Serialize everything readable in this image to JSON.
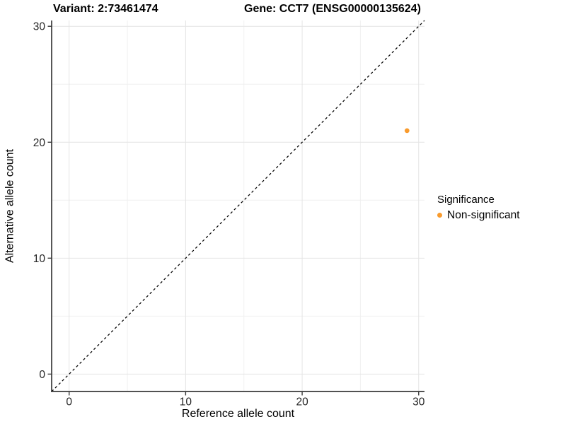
{
  "header": {
    "variant_title": "Variant: 2:73461474",
    "gene_title": "Gene: CCT7 (ENSG00000135624)"
  },
  "axes": {
    "x_label": "Reference allele count",
    "y_label": "Alternative allele count"
  },
  "legend": {
    "title": "Significance",
    "items": [
      {
        "label": "Non-significant",
        "color": "#F99B2D"
      }
    ]
  },
  "colors": {
    "point_orange": "#F99B2D",
    "axis_line": "#3a3a3a",
    "tick_label": "#262626",
    "grid_major": "#e4e4e4",
    "grid_minor": "#f0f0f0",
    "identity_line": "#000000"
  },
  "chart_data": {
    "type": "scatter",
    "title": "Variant: 2:73461474   Gene: CCT7 (ENSG00000135624)",
    "xlabel": "Reference allele count",
    "ylabel": "Alternative allele count",
    "x_range": [
      -1.5,
      30.5
    ],
    "y_range": [
      -1.5,
      30.5
    ],
    "x_ticks": [
      0,
      10,
      20,
      30
    ],
    "y_ticks": [
      0,
      10,
      20,
      30
    ],
    "x_minor_ticks": [
      5,
      15,
      25
    ],
    "y_minor_ticks": [
      5,
      15,
      25
    ],
    "grid": true,
    "legend_position": "right",
    "reference_line": {
      "kind": "identity",
      "style": "dashed"
    },
    "series": [
      {
        "name": "Non-significant",
        "color": "#F99B2D",
        "points": [
          {
            "x": 29,
            "y": 21
          }
        ]
      }
    ]
  }
}
